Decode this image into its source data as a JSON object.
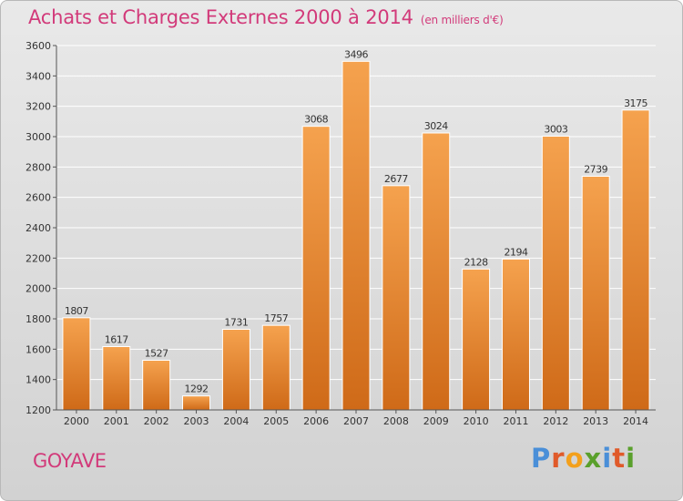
{
  "header": {
    "title": "Achats et Charges Externes 2000 à 2014",
    "unit": "(en milliers d'€)"
  },
  "footer": {
    "commune": "GOYAVE",
    "brand": "Proxiti"
  },
  "colors": {
    "title": "#d23a7a",
    "bar_light": "#f5a24e",
    "bar_dark": "#cf6a18",
    "brand_letters": [
      "#4a8fd8",
      "#e05a2a",
      "#f3a01c",
      "#5aa02c",
      "#4a8fd8",
      "#e05a2a",
      "#5aa02c"
    ]
  },
  "chart_data": {
    "type": "bar",
    "title": "Achats et Charges Externes 2000 à 2014",
    "subtitle": "(en milliers d'€)",
    "categories": [
      "2000",
      "2001",
      "2002",
      "2003",
      "2004",
      "2005",
      "2006",
      "2007",
      "2008",
      "2009",
      "2010",
      "2011",
      "2012",
      "2013",
      "2014"
    ],
    "values": [
      1807,
      1617,
      1527,
      1292,
      1731,
      1757,
      3068,
      3496,
      2677,
      3024,
      2128,
      2194,
      3003,
      2739,
      3175
    ],
    "ylim": [
      1200,
      3600
    ],
    "yticks": [
      1200,
      1400,
      1600,
      1800,
      2000,
      2200,
      2400,
      2600,
      2800,
      3000,
      3200,
      3400,
      3600
    ],
    "grid": true,
    "data_labels": true
  }
}
